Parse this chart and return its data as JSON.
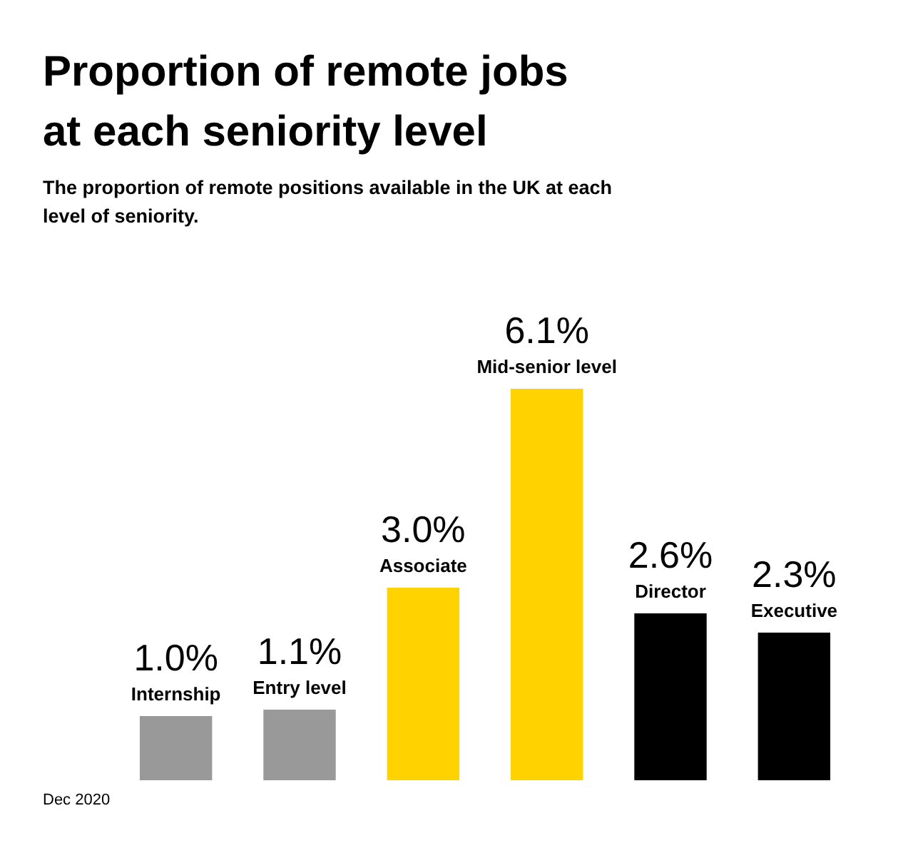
{
  "chart_data": {
    "type": "bar",
    "title": "Proportion of remote jobs at each seniority level",
    "subtitle": "The proportion of remote positions available in the UK at each level of seniority.",
    "categories": [
      "Internship",
      "Entry level",
      "Associate",
      "Mid-senior level",
      "Director",
      "Executive"
    ],
    "values": [
      1.0,
      1.1,
      3.0,
      6.1,
      2.6,
      2.3
    ],
    "value_labels": [
      "1.0%",
      "1.1%",
      "3.0%",
      "6.1%",
      "2.6%",
      "2.3%"
    ],
    "colors": [
      "#999999",
      "#999999",
      "#ffd200",
      "#ffd200",
      "#000000",
      "#000000"
    ],
    "grid": false,
    "legend": false,
    "annotations": [
      "Dec 2020"
    ]
  }
}
